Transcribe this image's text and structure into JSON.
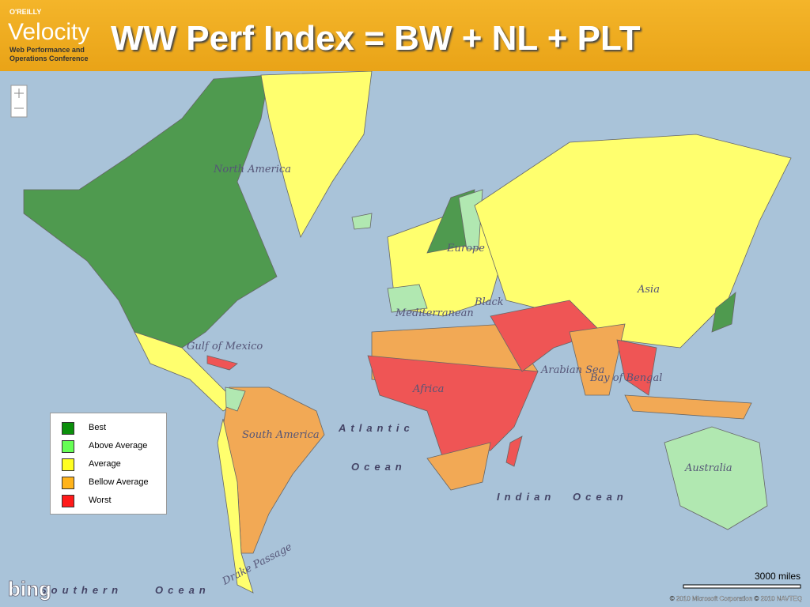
{
  "header": {
    "brand": "O'REILLY",
    "logo": "Velocity",
    "tagline": [
      "Web Performance and",
      "Operations Conference"
    ],
    "title": "WW Perf Index = BW + NL + PLT"
  },
  "legend": [
    {
      "label": "Best",
      "color": "#0b8f0b"
    },
    {
      "label": "Above Average",
      "color": "#66ff55"
    },
    {
      "label": "Average",
      "color": "#ffff22"
    },
    {
      "label": "Bellow Average",
      "color": "#ffb31a"
    },
    {
      "label": "Worst",
      "color": "#ff1a1a"
    }
  ],
  "map_labels": [
    "North America",
    "Gulf of Mexico",
    "South America",
    "Atlantic",
    "Ocean",
    "Europe",
    "Mediterranean",
    "Black",
    "Africa",
    "Asia",
    "Arabian Sea",
    "Bay of Bengal",
    "Indian",
    "Ocean",
    "Australia",
    "Southern",
    "Ocean",
    "Drake Passage"
  ],
  "map": {
    "provider": "bing",
    "scale": "3000 miles",
    "copyright": "© 2010 Microsoft Corporation © 2010 NAVTEQ"
  }
}
